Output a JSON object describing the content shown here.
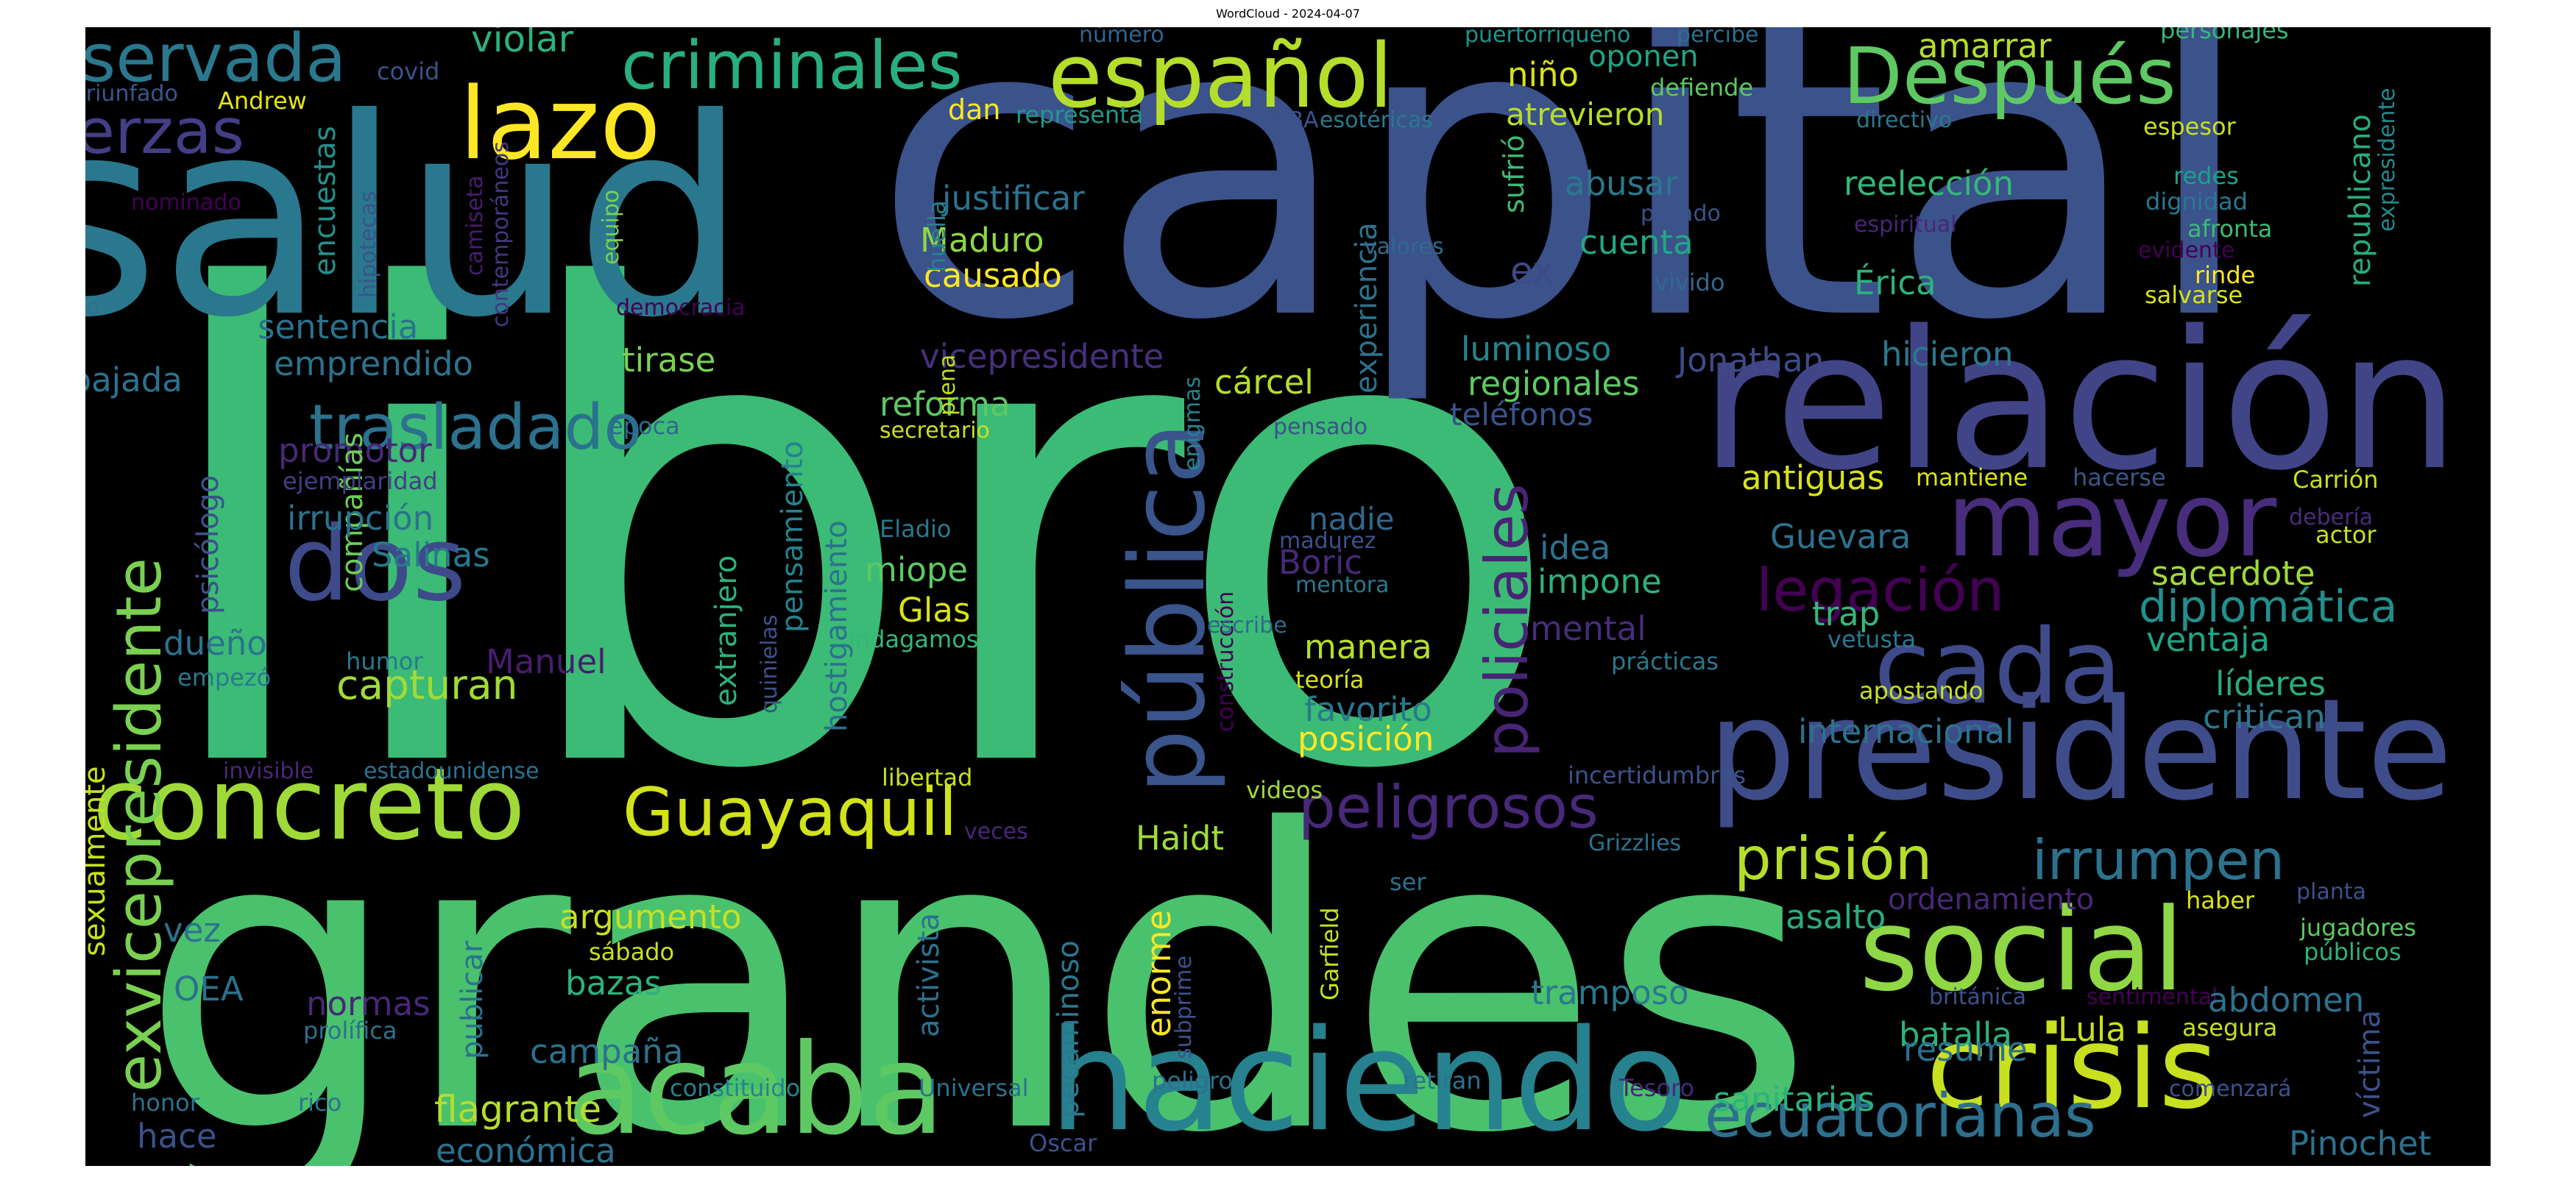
{
  "title": "WordCloud - 2024-04-07",
  "palette": {
    "background": "#000000",
    "title_color": "#000000"
  },
  "words": [
    {
      "text": "libro",
      "color": "#3bbb75"
    },
    {
      "text": "grandes",
      "color": "#4ac16d"
    },
    {
      "text": "capital",
      "color": "#3b528b"
    },
    {
      "text": "salud",
      "color": "#2a788e"
    },
    {
      "text": "relación",
      "color": "#414487"
    },
    {
      "text": "presidente",
      "color": "#3e4c8a"
    },
    {
      "text": "haciendo",
      "color": "#26828e"
    },
    {
      "text": "acaba",
      "color": "#5ec962"
    },
    {
      "text": "social",
      "color": "#8fd744"
    },
    {
      "text": "crisis",
      "color": "#c8e020"
    },
    {
      "text": "concreto",
      "color": "#a0da39"
    },
    {
      "text": "pública",
      "color": "#3a548c"
    },
    {
      "text": "cada",
      "color": "#3e4a89"
    },
    {
      "text": "mayor",
      "color": "#472d7b"
    },
    {
      "text": "dos",
      "color": "#3e4a89"
    },
    {
      "text": "lazo",
      "color": "#fde725"
    },
    {
      "text": "español",
      "color": "#b5de2b"
    },
    {
      "text": "Después",
      "color": "#5ec962"
    },
    {
      "text": "criminales",
      "color": "#29af7f"
    },
    {
      "text": "reservada",
      "color": "#2a788e"
    },
    {
      "text": "fuerzas",
      "color": "#433e85"
    },
    {
      "text": "exvicepresidente",
      "color": "#7ad151"
    },
    {
      "text": "Guayaquil",
      "color": "#d2e21b"
    },
    {
      "text": "trasladado",
      "color": "#2c718e"
    },
    {
      "text": "ecuatorianas",
      "color": "#2e6f8e"
    },
    {
      "text": "policiales",
      "color": "#482475"
    },
    {
      "text": "peligrosos",
      "color": "#482878"
    },
    {
      "text": "legación",
      "color": "#440154"
    },
    {
      "text": "prisión",
      "color": "#b5de2b"
    },
    {
      "text": "irrumpen",
      "color": "#2c728e"
    },
    {
      "text": "diplomática",
      "color": "#21908d"
    },
    {
      "text": "violar",
      "color": "#2db27d"
    },
    {
      "text": "niño",
      "color": "#d8e219"
    },
    {
      "text": "oponen",
      "color": "#20a486"
    },
    {
      "text": "amarrar",
      "color": "#b5de2b"
    },
    {
      "text": "personajes",
      "color": "#35b779"
    },
    {
      "text": "covid",
      "color": "#3b528b"
    },
    {
      "text": "Andrew",
      "color": "#e5e419"
    },
    {
      "text": "triunfado",
      "color": "#39568c"
    },
    {
      "text": "encuestas",
      "color": "#21918c"
    },
    {
      "text": "nominado",
      "color": "#440154"
    },
    {
      "text": "hipotecas",
      "color": "#3b528b"
    },
    {
      "text": "camiseta",
      "color": "#481d6f"
    },
    {
      "text": "contemporáneos",
      "color": "#453781"
    },
    {
      "text": "equipo",
      "color": "#7ad151"
    },
    {
      "text": "número",
      "color": "#32648e"
    },
    {
      "text": "puertorriqueño",
      "color": "#1f948c"
    },
    {
      "text": "percibe",
      "color": "#2e6e8e"
    },
    {
      "text": "dan",
      "color": "#fde725"
    },
    {
      "text": "representa",
      "color": "#1f9a8a"
    },
    {
      "text": "NBA",
      "color": "#3b528b"
    },
    {
      "text": "esotéricas",
      "color": "#2a788e"
    },
    {
      "text": "sufrió",
      "color": "#3bbb75"
    },
    {
      "text": "defiende",
      "color": "#5ec962"
    },
    {
      "text": "atrevieron",
      "color": "#b5de2b"
    },
    {
      "text": "directivo",
      "color": "#2a788e"
    },
    {
      "text": "espesor",
      "color": "#c8e020"
    },
    {
      "text": "republicano",
      "color": "#27ad81"
    },
    {
      "text": "expresidente",
      "color": "#23898e"
    },
    {
      "text": "justificar",
      "color": "#2c728e"
    },
    {
      "text": "abusar",
      "color": "#2a788e"
    },
    {
      "text": "reelección",
      "color": "#35b779"
    },
    {
      "text": "pasado",
      "color": "#3b528b"
    },
    {
      "text": "espiritual",
      "color": "#482677"
    },
    {
      "text": "redes",
      "color": "#1fa088"
    },
    {
      "text": "dignidad",
      "color": "#2a788e"
    },
    {
      "text": "afronta",
      "color": "#3bbb75"
    },
    {
      "text": "evidente",
      "color": "#440154"
    },
    {
      "text": "Maduro",
      "color": "#8fd744"
    },
    {
      "text": "causado",
      "color": "#fde725"
    },
    {
      "text": "cuenta",
      "color": "#22a785"
    },
    {
      "text": "valores",
      "color": "#31688e"
    },
    {
      "text": "vivido",
      "color": "#31688e"
    },
    {
      "text": "rinde",
      "color": "#fde725"
    },
    {
      "text": "salvarse",
      "color": "#d8e219"
    },
    {
      "text": "huella",
      "color": "#25848e"
    },
    {
      "text": "experiencia",
      "color": "#2c728e"
    },
    {
      "text": "ex",
      "color": "#3e4a89"
    },
    {
      "text": "Érica",
      "color": "#2db27d"
    },
    {
      "text": "México",
      "color": "#2c718e"
    },
    {
      "text": "democracia",
      "color": "#440154"
    },
    {
      "text": "sentencia",
      "color": "#2c718e"
    },
    {
      "text": "emprendido",
      "color": "#2c728e"
    },
    {
      "text": "tirase",
      "color": "#7ad151"
    },
    {
      "text": "vicepresidente",
      "color": "#46307e"
    },
    {
      "text": "cárcel",
      "color": "#b5de2b"
    },
    {
      "text": "luminoso",
      "color": "#25848e"
    },
    {
      "text": "Jonathan",
      "color": "#3e4a89"
    },
    {
      "text": "hicieron",
      "color": "#2a788e"
    },
    {
      "text": "embajada",
      "color": "#2c728e"
    },
    {
      "text": "regionales",
      "color": "#5ec962"
    },
    {
      "text": "teléfonos",
      "color": "#3b528b"
    },
    {
      "text": "promotor",
      "color": "#482878"
    },
    {
      "text": "compañías",
      "color": "#6ccd5a"
    },
    {
      "text": "época",
      "color": "#31688e"
    },
    {
      "text": "reforma",
      "color": "#5ec962"
    },
    {
      "text": "secretario",
      "color": "#c8e020"
    },
    {
      "text": "plena",
      "color": "#c2df23"
    },
    {
      "text": "enigmas",
      "color": "#25848e"
    },
    {
      "text": "pensado",
      "color": "#3b528b"
    },
    {
      "text": "antiguas",
      "color": "#d8e219"
    },
    {
      "text": "mantiene",
      "color": "#d8e219"
    },
    {
      "text": "hacerse",
      "color": "#39568c"
    },
    {
      "text": "Carrión",
      "color": "#c8e020"
    },
    {
      "text": "psicólogo",
      "color": "#3b528b"
    },
    {
      "text": "ejemplaridad",
      "color": "#433e85"
    },
    {
      "text": "irrupción",
      "color": "#2c718e"
    },
    {
      "text": "Salinas",
      "color": "#2a788e"
    },
    {
      "text": "extranjero",
      "color": "#2db27d"
    },
    {
      "text": "pensamiento",
      "color": "#26828e"
    },
    {
      "text": "hostigamiento",
      "color": "#2c718e"
    },
    {
      "text": "Eladio",
      "color": "#2a788e"
    },
    {
      "text": "madurez",
      "color": "#3b528b"
    },
    {
      "text": "nadie",
      "color": "#31688e"
    },
    {
      "text": "idea",
      "color": "#2c728e"
    },
    {
      "text": "Guevara",
      "color": "#2c728e"
    },
    {
      "text": "debería",
      "color": "#472d7b"
    },
    {
      "text": "actor",
      "color": "#c8e020"
    },
    {
      "text": "miope",
      "color": "#5ec962"
    },
    {
      "text": "Boric",
      "color": "#482878"
    },
    {
      "text": "impone",
      "color": "#2db27d"
    },
    {
      "text": "sacerdote",
      "color": "#a0da39"
    },
    {
      "text": "construcción",
      "color": "#440154"
    },
    {
      "text": "mentora",
      "color": "#2a788e"
    },
    {
      "text": "trap",
      "color": "#35b779"
    },
    {
      "text": "Glas",
      "color": "#d8e219"
    },
    {
      "text": "escribe",
      "color": "#31688e"
    },
    {
      "text": "mental",
      "color": "#472d7b"
    },
    {
      "text": "vetusta",
      "color": "#2a788e"
    },
    {
      "text": "ventaja",
      "color": "#20a486"
    },
    {
      "text": "dueño",
      "color": "#2c728e"
    },
    {
      "text": "Manuel",
      "color": "#481d6f"
    },
    {
      "text": "humor",
      "color": "#2a788e"
    },
    {
      "text": "quinielas",
      "color": "#3b528b"
    },
    {
      "text": "indagamos",
      "color": "#35b779"
    },
    {
      "text": "manera",
      "color": "#b5de2b"
    },
    {
      "text": "prácticas",
      "color": "#2a788e"
    },
    {
      "text": "apostando",
      "color": "#c8e020"
    },
    {
      "text": "líderes",
      "color": "#27ad81"
    },
    {
      "text": "empezó",
      "color": "#2a788e"
    },
    {
      "text": "capturan",
      "color": "#a0da39"
    },
    {
      "text": "teoría",
      "color": "#d8e219"
    },
    {
      "text": "favorito",
      "color": "#2a788e"
    },
    {
      "text": "critican",
      "color": "#2a788e"
    },
    {
      "text": "internacional",
      "color": "#2c728e"
    },
    {
      "text": "sexualmente",
      "color": "#c8e020"
    },
    {
      "text": "invisible",
      "color": "#482878"
    },
    {
      "text": "estadounidense",
      "color": "#2c718e"
    },
    {
      "text": "libertad",
      "color": "#c8e020"
    },
    {
      "text": "posición",
      "color": "#fde725"
    },
    {
      "text": "incertidumbres",
      "color": "#3b528b"
    },
    {
      "text": "videos",
      "color": "#a0da39"
    },
    {
      "text": "Haidt",
      "color": "#a0da39"
    },
    {
      "text": "veces",
      "color": "#482878"
    },
    {
      "text": "Grizzlies",
      "color": "#2c728e"
    },
    {
      "text": "ser",
      "color": "#2c728e"
    },
    {
      "text": "ordenamiento",
      "color": "#482878"
    },
    {
      "text": "haber",
      "color": "#d8e219"
    },
    {
      "text": "planta",
      "color": "#3b528b"
    },
    {
      "text": "vez",
      "color": "#2c728e"
    },
    {
      "text": "argumento",
      "color": "#c8e020"
    },
    {
      "text": "sábado",
      "color": "#c8e020"
    },
    {
      "text": "Garfield",
      "color": "#c8e020"
    },
    {
      "text": "enorme",
      "color": "#fde725"
    },
    {
      "text": "asalto",
      "color": "#27ad81"
    },
    {
      "text": "jugadores",
      "color": "#5ec962"
    },
    {
      "text": "públicos",
      "color": "#2db27d"
    },
    {
      "text": "OEA",
      "color": "#2c718e"
    },
    {
      "text": "publicar",
      "color": "#2c718e"
    },
    {
      "text": "bazas",
      "color": "#2db27d"
    },
    {
      "text": "activista",
      "color": "#2c718e"
    },
    {
      "text": "pecaminoso",
      "color": "#2a788e"
    },
    {
      "text": "subprime",
      "color": "#3b528b"
    },
    {
      "text": "tramposo",
      "color": "#2a788e"
    },
    {
      "text": "británica",
      "color": "#3b528b"
    },
    {
      "text": "sentimental",
      "color": "#440154"
    },
    {
      "text": "abdomen",
      "color": "#2c718e"
    },
    {
      "text": "normas",
      "color": "#482878"
    },
    {
      "text": "prolífica",
      "color": "#2c718e"
    },
    {
      "text": "campaña",
      "color": "#2c718e"
    },
    {
      "text": "batalla",
      "color": "#2db27d"
    },
    {
      "text": "Lula",
      "color": "#c8e020"
    },
    {
      "text": "asegura",
      "color": "#c8e020"
    },
    {
      "text": "resume",
      "color": "#2c718e"
    },
    {
      "text": "víctima",
      "color": "#3b528b"
    },
    {
      "text": "honor",
      "color": "#2c718e"
    },
    {
      "text": "rico",
      "color": "#2c718e"
    },
    {
      "text": "constituido",
      "color": "#26828e"
    },
    {
      "text": "Universal",
      "color": "#2c718e"
    },
    {
      "text": "peligro",
      "color": "#2c718e"
    },
    {
      "text": "retiran",
      "color": "#2c728e"
    },
    {
      "text": "Tesoro",
      "color": "#482878"
    },
    {
      "text": "flagrante",
      "color": "#b5de2b"
    },
    {
      "text": "sanitarias",
      "color": "#2db27d"
    },
    {
      "text": "comenzará",
      "color": "#3b528b"
    },
    {
      "text": "hace",
      "color": "#3b528b"
    },
    {
      "text": "económica",
      "color": "#2c718e"
    },
    {
      "text": "Oscar",
      "color": "#3b528b"
    },
    {
      "text": "Pinochet",
      "color": "#2c718e"
    }
  ]
}
